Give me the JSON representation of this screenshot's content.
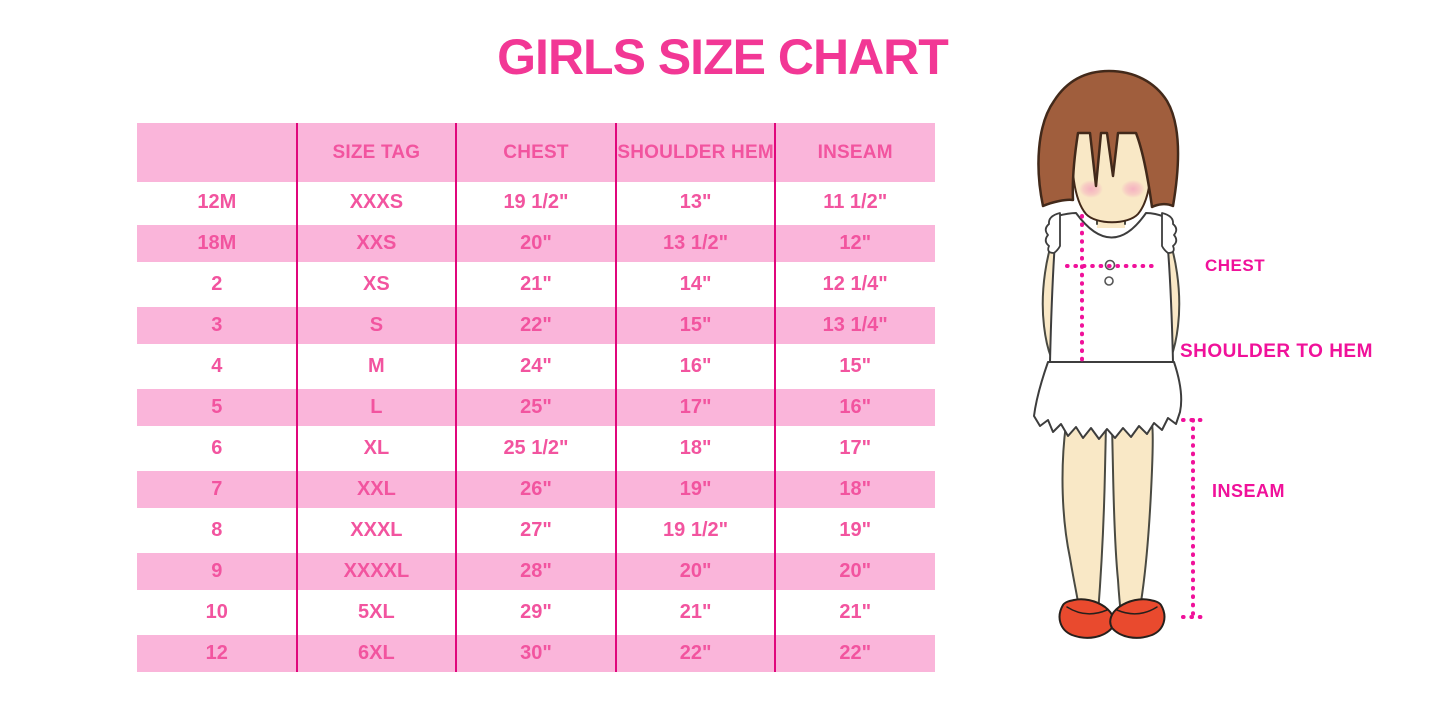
{
  "title": "GIRLS SIZE CHART",
  "chart_data": {
    "type": "table",
    "title": "GIRLS SIZE CHART",
    "columns": [
      "",
      "SIZE TAG",
      "CHEST",
      "SHOULDER HEM",
      "INSEAM"
    ],
    "rows": [
      [
        "12M",
        "XXXS",
        "19 1/2\"",
        "13\"",
        "11 1/2\""
      ],
      [
        "18M",
        "XXS",
        "20\"",
        "13 1/2\"",
        "12\""
      ],
      [
        "2",
        "XS",
        "21\"",
        "14\"",
        "12 1/4\""
      ],
      [
        "3",
        "S",
        "22\"",
        "15\"",
        "13 1/4\""
      ],
      [
        "4",
        "M",
        "24\"",
        "16\"",
        "15\""
      ],
      [
        "5",
        "L",
        "25\"",
        "17\"",
        "16\""
      ],
      [
        "6",
        "XL",
        "25 1/2\"",
        "18\"",
        "17\""
      ],
      [
        "7",
        "XXL",
        "26\"",
        "19\"",
        "18\""
      ],
      [
        "8",
        "XXXL",
        "27\"",
        "19 1/2\"",
        "19\""
      ],
      [
        "9",
        "XXXXL",
        "28\"",
        "20\"",
        "20\""
      ],
      [
        "10",
        "5XL",
        "29\"",
        "21\"",
        "21\""
      ],
      [
        "12",
        "6XL",
        "30\"",
        "22\"",
        "22\""
      ]
    ],
    "row_style": "alternating white and pink bands, pink header row",
    "grid": "vertical magenta column dividers only, no horizontal rules",
    "legend_position": "none"
  },
  "figure": {
    "labels": {
      "chest": "CHEST",
      "shoulder_to_hem": "SHOULDER TO HEM",
      "inseam": "INSEAM"
    }
  },
  "colors": {
    "title_pink": "#F23795",
    "row_text_pink": "#F2549F",
    "band_pink": "#FAB5DA",
    "divider_magenta": "#E0077C",
    "label_magenta": "#F0119A",
    "hair_brown": "#A05E3D",
    "skin": "#F9E8C6",
    "shoe_red": "#E94A2E"
  }
}
